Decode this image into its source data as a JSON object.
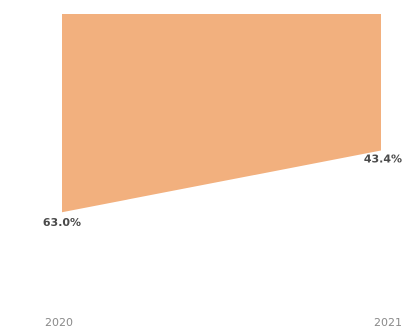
{
  "chart_data": {
    "type": "area",
    "categories": [
      "2020",
      "2021"
    ],
    "series": [
      {
        "values": [
          63.0,
          43.4
        ],
        "labels": [
          "63.0%",
          "43.4%"
        ]
      }
    ],
    "colors": {
      "fill": "#F2B07E",
      "data_label": "#4a4a4a",
      "tick_label": "#8c8c8c"
    },
    "ylim": [
      0,
      100
    ],
    "y_direction": "inverted",
    "grid": false,
    "legend": "none"
  }
}
